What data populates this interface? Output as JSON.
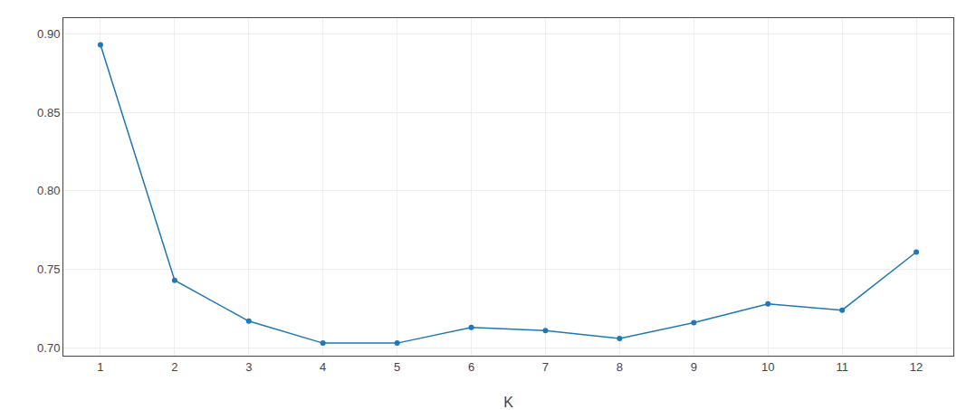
{
  "chart_data": {
    "type": "line",
    "x": [
      1,
      2,
      3,
      4,
      5,
      6,
      7,
      8,
      9,
      10,
      11,
      12
    ],
    "values": [
      0.893,
      0.743,
      0.717,
      0.703,
      0.703,
      0.713,
      0.711,
      0.706,
      0.716,
      0.728,
      0.724,
      0.761
    ],
    "xlabel": "K",
    "xlim": [
      0.5,
      12.5
    ],
    "ylim": [
      0.695,
      0.91
    ],
    "xticks": [
      1,
      2,
      3,
      4,
      5,
      6,
      7,
      8,
      9,
      10,
      11,
      12
    ],
    "yticks": [
      {
        "value": 0.7,
        "label": "0.70"
      },
      0.75,
      {
        "value": 0.8,
        "label": "0.80"
      },
      0.85,
      {
        "value": 0.9,
        "label": "0.90"
      }
    ],
    "marker": "circle",
    "grid": true
  }
}
